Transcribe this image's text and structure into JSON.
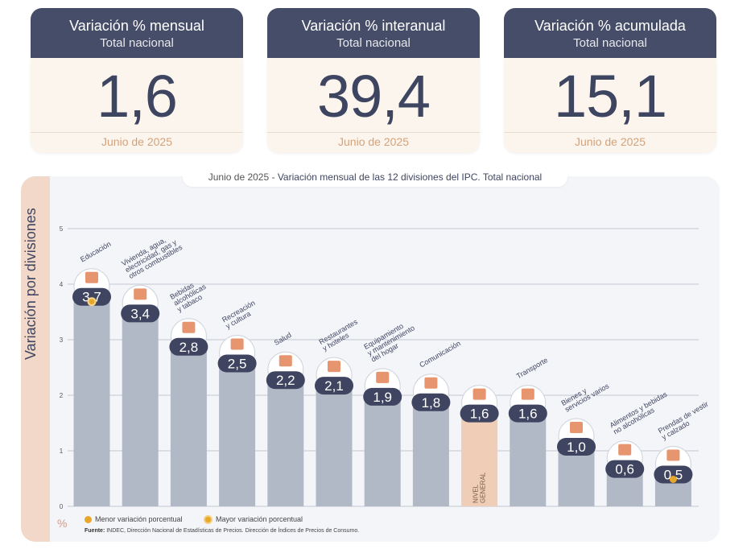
{
  "cards": [
    {
      "title": "Variación % mensual",
      "subtitle": "Total nacional",
      "value": "1,6",
      "date": "Junio de 2025"
    },
    {
      "title": "Variación % interanual",
      "subtitle": "Total nacional",
      "value": "39,4",
      "date": "Junio de 2025"
    },
    {
      "title": "Variación % acumulada",
      "subtitle": "Total nacional",
      "value": "15,1",
      "date": "Junio de 2025"
    }
  ],
  "chart_title_prefix": "Junio de 2025 - ",
  "chart_title_main": "Variación mensual de las 12 divisiones del IPC. Total nacional",
  "y_axis_label": "Variación por divisiones",
  "unit_label": "%",
  "legend": {
    "min": "Menor variación porcentual",
    "max": "Mayor variación porcentual"
  },
  "source_bold": "Fuente:",
  "source_text": " INDEC, Dirección Nacional de Estadísticas de Precios. Dirección de Índices de Precios de Consumo.",
  "colors": {
    "bar": "#b2b9c6",
    "general_bar": "#efcdb7",
    "bubble": "#3f4560",
    "accent": "#e9a72a",
    "icon": "#e07b4a"
  },
  "chart_data": {
    "type": "bar",
    "title": "Variación mensual de las 12 divisiones del IPC. Total nacional",
    "ylabel": "Variación por divisiones",
    "ylim": [
      0,
      5
    ],
    "yticks": [
      "0",
      "1",
      "2",
      "3",
      "4",
      "5"
    ],
    "grid": true,
    "categories": [
      "Educación",
      "Vivienda, agua, electricidad, gas y otros combustibles",
      "Bebidas alcohólicas y tabaco",
      "Recreación y cultura",
      "Salud",
      "Restaurantes y hoteles",
      "Equipamiento y mantenimiento del hogar",
      "Comunicación",
      "NIVEL GENERAL",
      "Transporte",
      "Bienes y servicios varios",
      "Alimentos y bebidas no alcohólicas",
      "Prendas de vestir y calzado"
    ],
    "values": [
      3.7,
      3.4,
      2.8,
      2.5,
      2.2,
      2.1,
      1.9,
      1.8,
      1.6,
      1.6,
      1.0,
      0.6,
      0.5
    ],
    "value_labels": [
      "3,7",
      "3,4",
      "2,8",
      "2,5",
      "2,2",
      "2,1",
      "1,9",
      "1,8",
      "1,6",
      "1,6",
      "1,0",
      "0,6",
      "0,5"
    ],
    "label_lines": [
      [
        "Educación"
      ],
      [
        "Vivienda, agua,",
        "electricidad, gas y",
        "otros combustibles"
      ],
      [
        "Bebidas",
        "alcohólicas",
        "y tabaco"
      ],
      [
        "Recreación",
        "y cultura"
      ],
      [
        "Salud"
      ],
      [
        "Restaurantes",
        "y hoteles"
      ],
      [
        "Equipamiento",
        "y mantenimiento",
        "del hogar"
      ],
      [
        "Comunicación"
      ],
      [],
      [
        "Transporte"
      ],
      [
        "Bienes y",
        "servicios varios"
      ],
      [
        "Alimentos y bebidas",
        "no alcohólicas"
      ],
      [
        "Prendas de vestir",
        "y calzado"
      ]
    ],
    "general_label_lines": [
      "NIVEL",
      "GENERAL"
    ],
    "general_index": 8,
    "max_index": 0,
    "min_index": 12,
    "icons": [
      "book-icon",
      "lightbulb-icon",
      "bottle-icon",
      "umbrella-icon",
      "first-aid-icon",
      "cutlery-icon",
      "appliance-icon",
      "phone-icon",
      "shopping-basket-icon",
      "bus-card-icon",
      "comb-icon",
      "chicken-icon",
      "shirt-icon"
    ]
  }
}
